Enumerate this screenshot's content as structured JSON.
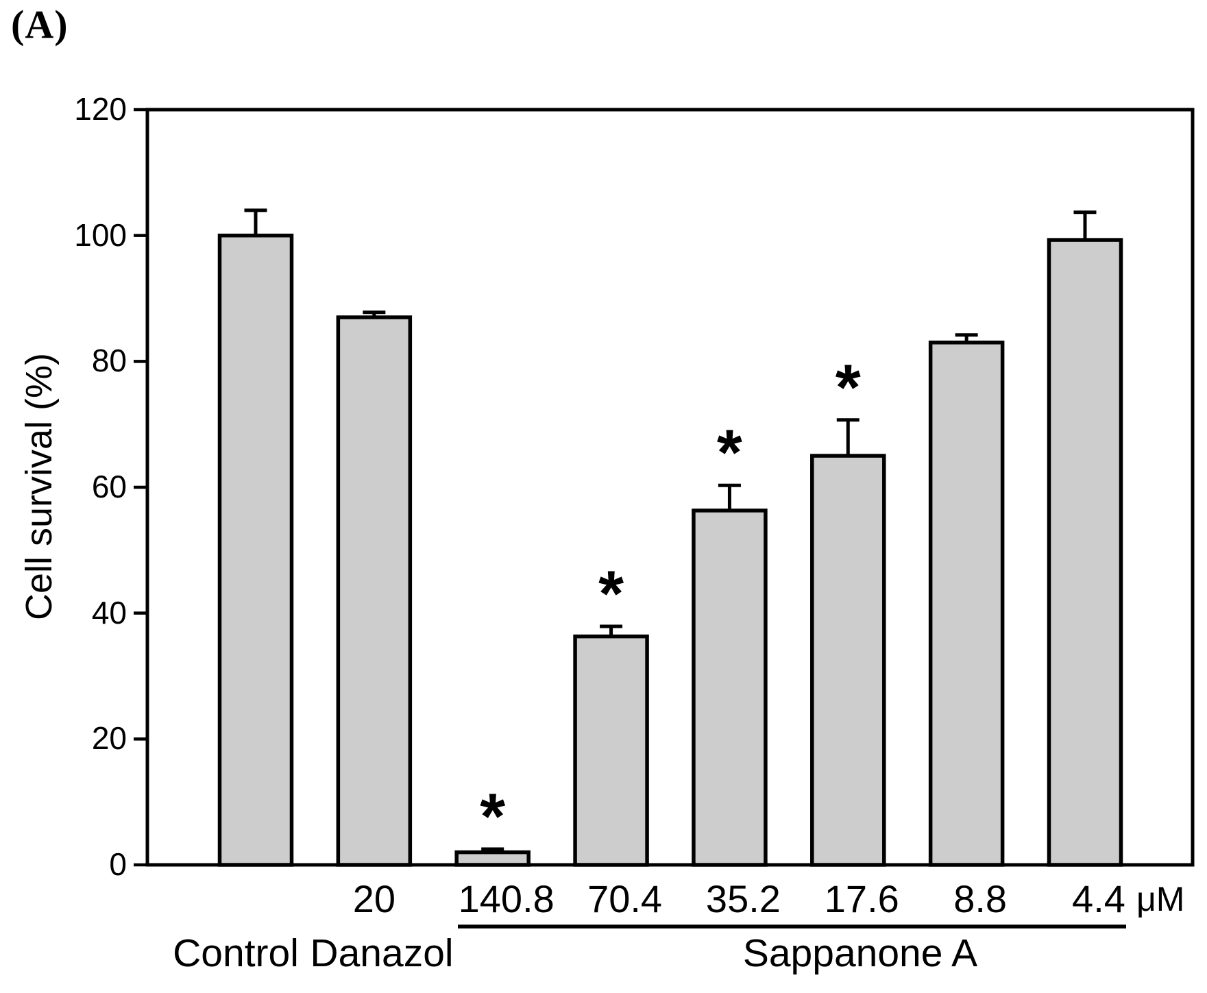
{
  "panel_label": "(A)",
  "chart_data": {
    "type": "bar",
    "title": "",
    "ylabel": "Cell survival (%)",
    "xlabel": "",
    "ylim": [
      0,
      120
    ],
    "yticks": [
      0,
      20,
      40,
      60,
      80,
      100,
      120
    ],
    "unit_label": "μM",
    "significance_marker": "*",
    "grid": false,
    "legend": null,
    "bar_fill": "#cdcdcd",
    "bar_stroke": "#000000",
    "error_bar_direction": "upper",
    "groups": [
      {
        "label": "Control",
        "underline": false,
        "doses": [
          {
            "dose": "",
            "value": 100,
            "error": 4.0,
            "significant": false
          }
        ]
      },
      {
        "label": "Danazol",
        "underline": false,
        "doses": [
          {
            "dose": "20",
            "value": 87,
            "error": 0.8,
            "significant": false
          }
        ]
      },
      {
        "label": "Sappanone A",
        "underline": true,
        "doses": [
          {
            "dose": "140.8",
            "value": 2,
            "error": 0.5,
            "significant": true
          },
          {
            "dose": "70.4",
            "value": 36.3,
            "error": 1.6,
            "significant": true
          },
          {
            "dose": "35.2",
            "value": 56.3,
            "error": 4.0,
            "significant": true
          },
          {
            "dose": "17.6",
            "value": 65,
            "error": 5.7,
            "significant": true
          },
          {
            "dose": "8.8",
            "value": 83,
            "error": 1.2,
            "significant": false
          },
          {
            "dose": "4.4",
            "value": 99.3,
            "error": 4.4,
            "significant": false
          }
        ]
      }
    ]
  }
}
